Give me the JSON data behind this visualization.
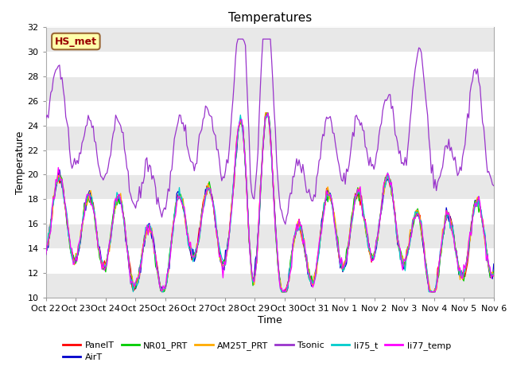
{
  "title": "Temperatures",
  "xlabel": "Time",
  "ylabel": "Temperature",
  "ylim": [
    10,
    32
  ],
  "yticks": [
    10,
    12,
    14,
    16,
    18,
    20,
    22,
    24,
    26,
    28,
    30,
    32
  ],
  "xtick_labels": [
    "Oct 22",
    "Oct 23",
    "Oct 24",
    "Oct 25",
    "Oct 26",
    "Oct 27",
    "Oct 28",
    "Oct 29",
    "Oct 30",
    "Oct 31",
    "Nov 1",
    "Nov 2",
    "Nov 3",
    "Nov 4",
    "Nov 5",
    "Nov 6"
  ],
  "annotation": "HS_met",
  "series_colors": {
    "PanelT": "#ff0000",
    "AirT": "#0000cc",
    "NR01_PRT": "#00cc00",
    "AM25T_PRT": "#ffaa00",
    "Tsonic": "#9933cc",
    "li75_t": "#00cccc",
    "li77_temp": "#ff00ff"
  },
  "legend_order": [
    "PanelT",
    "AirT",
    "NR01_PRT",
    "AM25T_PRT",
    "Tsonic",
    "li75_t",
    "li77_temp"
  ],
  "bg_color": "#ffffff",
  "band_color": "#e8e8e8",
  "n_points": 360
}
